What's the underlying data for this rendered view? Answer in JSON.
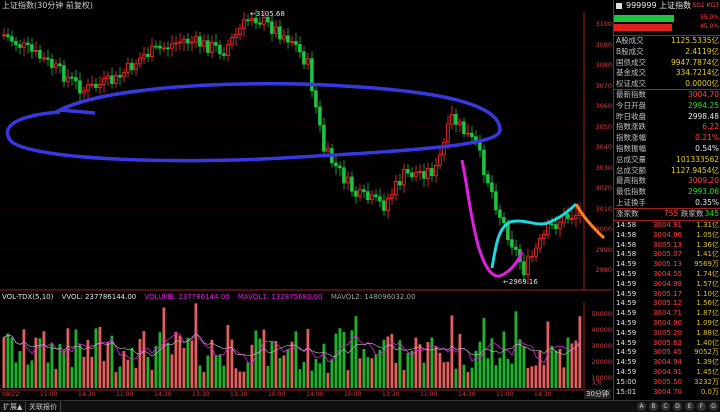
{
  "title": "上证指数(30分钟 前复权)",
  "price_annotations": {
    "high": "3105.68",
    "low": "2969.16"
  },
  "price_axis": [
    "3100",
    "3090",
    "3080",
    "3070",
    "3060",
    "3050",
    "3040",
    "3030",
    "3020",
    "3010",
    "3000",
    "2990",
    "2980"
  ],
  "vol_header": {
    "indicator": "VOL-TDX(5,10)",
    "vvol": "VVOL: 237786144.00",
    "volume": "VOLUME: 237786144.00",
    "mavol1": "MAVOL1: 132875680.00",
    "mavol2": "MAVOL2: 148096032.00"
  },
  "vol_axis": [
    "50000",
    "40000",
    "30000",
    "20000",
    "10000"
  ],
  "vol_unit": "X万",
  "time_axis": [
    "08/22",
    "11:00",
    "14:30",
    "11:00",
    "14:30",
    "13:30",
    "13:30",
    "10:00",
    "14:00",
    "10:00",
    "13:30",
    "11:00",
    "14:30",
    "11:00",
    "14:30"
  ],
  "period_tab": "30分钟",
  "bottom_tabs": [
    "扩展▲",
    "关联报价"
  ],
  "bottom_icons": [
    "A",
    "B",
    "C",
    "D",
    "E",
    "F",
    "G"
  ],
  "colors": {
    "up": "#ff3030",
    "down": "#20c040",
    "axis": "#a02020",
    "ma_blue": "#3030e0",
    "magenta": "#e020e0",
    "cyan": "#20d8e0",
    "orange": "#ff8020"
  },
  "panel": {
    "code": "999999 上证指数",
    "badge": "SG1 KG3",
    "bar_up_pct": "55.0%",
    "bar_down_pct": "45.0%",
    "stats_a": [
      {
        "label": "A股成交",
        "value": "1125.5335亿",
        "color": "yellow"
      },
      {
        "label": "B股成交",
        "value": "2.4119亿",
        "color": "yellow"
      },
      {
        "label": "国债成交",
        "value": "9947.7874亿",
        "color": "yellow"
      },
      {
        "label": "基金成交",
        "value": "334.7214亿",
        "color": "yellow"
      },
      {
        "label": "权证成交",
        "value": "0.0000亿",
        "color": "yellow"
      }
    ],
    "stats_b": [
      {
        "label": "最新指数",
        "value": "3004.70",
        "color": "red"
      },
      {
        "label": "今日开盘",
        "value": "2994.25",
        "color": "green"
      },
      {
        "label": "昨日收盘",
        "value": "2998.48",
        "color": "white"
      },
      {
        "label": "指数涨跌",
        "value": "6.22",
        "color": "red"
      },
      {
        "label": "指数涨幅",
        "value": "0.21%",
        "color": "red"
      },
      {
        "label": "指数振幅",
        "value": "0.54%",
        "color": "white"
      },
      {
        "label": "总成交量",
        "value": "101333562",
        "color": "yellow"
      },
      {
        "label": "总成交额",
        "value": "1127.9454亿",
        "color": "yellow"
      },
      {
        "label": "最高指数",
        "value": "3009.20",
        "color": "red"
      },
      {
        "label": "最低指数",
        "value": "2993.06",
        "color": "green"
      },
      {
        "label": "上证换手",
        "value": "0.35%",
        "color": "white"
      }
    ],
    "advance": {
      "up_label": "涨家数",
      "up": "755",
      "down_label": "跌家数",
      "down": "345"
    },
    "ticks": [
      {
        "t": "14:58",
        "p": "3004.91",
        "v": "1.31亿"
      },
      {
        "t": "14:58",
        "p": "3004.96",
        "v": "1.05亿"
      },
      {
        "t": "14:58",
        "p": "3005.13",
        "v": "1.36亿"
      },
      {
        "t": "14:58",
        "p": "3005.07",
        "v": "1.41亿"
      },
      {
        "t": "14:59",
        "p": "3005.13",
        "v": "9569万"
      },
      {
        "t": "14:59",
        "p": "3004.55",
        "v": "1.74亿"
      },
      {
        "t": "14:59",
        "p": "3004.99",
        "v": "1.57亿"
      },
      {
        "t": "14:59",
        "p": "3005.17",
        "v": "1.10亿"
      },
      {
        "t": "14:59",
        "p": "3005.12",
        "v": "1.56亿"
      },
      {
        "t": "14:59",
        "p": "3004.71",
        "v": "1.87亿"
      },
      {
        "t": "14:59",
        "p": "3004.90",
        "v": "1.09亿"
      },
      {
        "t": "14:59",
        "p": "3005.20",
        "v": "1.88亿"
      },
      {
        "t": "14:59",
        "p": "3005.63",
        "v": "1.40亿"
      },
      {
        "t": "14:59",
        "p": "3005.45",
        "v": "9052万"
      },
      {
        "t": "14:59",
        "p": "3004.94",
        "v": "1.39亿"
      },
      {
        "t": "14:59",
        "p": "3004.91",
        "v": "1.45亿"
      },
      {
        "t": "15:00",
        "p": "3005.50",
        "v": "3232万"
      },
      {
        "t": "15:01",
        "p": "3004.70",
        "v": "0.0万"
      }
    ]
  }
}
